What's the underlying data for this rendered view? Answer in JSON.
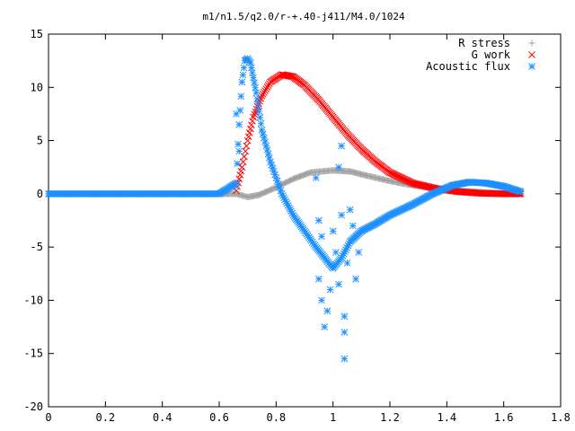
{
  "chart_data": {
    "type": "scatter",
    "title": "m1/n1.5/q2.0/r-+.40-j411/M4.0/1024",
    "xlabel": "",
    "ylabel": "",
    "xlim": [
      0,
      1.8
    ],
    "ylim": [
      -20,
      15
    ],
    "xticks": [
      "0",
      "0.2",
      "0.4",
      "0.6",
      "0.8",
      "1",
      "1.2",
      "1.4",
      "1.6",
      "1.8"
    ],
    "yticks": [
      "15",
      "10",
      "5",
      "0",
      "-5",
      "-10",
      "-15",
      "-20"
    ],
    "legend_position": "top-right",
    "grid": false,
    "series": [
      {
        "name": "R stress",
        "marker": "plus",
        "color": "#a0a0a0",
        "points": [
          [
            0.0,
            0.0
          ],
          [
            0.2,
            0.0
          ],
          [
            0.4,
            0.0
          ],
          [
            0.6,
            0.0
          ],
          [
            0.66,
            0.0
          ],
          [
            0.7,
            -0.3
          ],
          [
            0.74,
            -0.1
          ],
          [
            0.8,
            0.6
          ],
          [
            0.86,
            1.4
          ],
          [
            0.92,
            2.0
          ],
          [
            1.0,
            2.2
          ],
          [
            1.06,
            2.1
          ],
          [
            1.12,
            1.7
          ],
          [
            1.2,
            1.2
          ],
          [
            1.28,
            0.8
          ],
          [
            1.36,
            0.5
          ],
          [
            1.44,
            0.3
          ],
          [
            1.52,
            0.15
          ],
          [
            1.6,
            0.05
          ],
          [
            1.66,
            0.0
          ]
        ]
      },
      {
        "name": "G work",
        "marker": "cross",
        "color": "#ff0000",
        "points": [
          [
            0.66,
            0.3
          ],
          [
            0.68,
            2.5
          ],
          [
            0.7,
            5.0
          ],
          [
            0.72,
            7.2
          ],
          [
            0.75,
            9.2
          ],
          [
            0.78,
            10.5
          ],
          [
            0.82,
            11.2
          ],
          [
            0.86,
            11.0
          ],
          [
            0.9,
            10.2
          ],
          [
            0.95,
            8.8
          ],
          [
            1.0,
            7.2
          ],
          [
            1.05,
            5.6
          ],
          [
            1.1,
            4.2
          ],
          [
            1.15,
            3.0
          ],
          [
            1.2,
            2.0
          ],
          [
            1.28,
            1.0
          ],
          [
            1.36,
            0.5
          ],
          [
            1.44,
            0.2
          ],
          [
            1.52,
            0.05
          ],
          [
            1.6,
            0.0
          ],
          [
            1.66,
            0.0
          ]
        ]
      },
      {
        "name": "Acoustic flux",
        "marker": "star",
        "color": "#1e90ff",
        "points": [
          [
            0.0,
            0.0
          ],
          [
            0.2,
            0.0
          ],
          [
            0.4,
            0.0
          ],
          [
            0.6,
            0.0
          ],
          [
            0.66,
            1.0
          ],
          [
            0.67,
            6.5
          ],
          [
            0.68,
            10.5
          ],
          [
            0.69,
            12.5
          ],
          [
            0.7,
            12.7
          ],
          [
            0.71,
            12.3
          ],
          [
            0.73,
            9.5
          ],
          [
            0.75,
            6.0
          ],
          [
            0.78,
            3.0
          ],
          [
            0.82,
            0.0
          ],
          [
            0.86,
            -2.0
          ],
          [
            0.9,
            -3.5
          ],
          [
            0.94,
            -5.0
          ],
          [
            0.97,
            -6.0
          ],
          [
            1.0,
            -7.0
          ],
          [
            1.03,
            -6.0
          ],
          [
            1.06,
            -4.5
          ],
          [
            1.1,
            -3.5
          ],
          [
            1.15,
            -2.8
          ],
          [
            1.2,
            -2.0
          ],
          [
            1.28,
            -1.0
          ],
          [
            1.35,
            0.0
          ],
          [
            1.42,
            0.8
          ],
          [
            1.48,
            1.1
          ],
          [
            1.54,
            1.0
          ],
          [
            1.6,
            0.7
          ],
          [
            1.66,
            0.2
          ],
          [
            0.66,
            7.5
          ],
          [
            0.67,
            4.0
          ],
          [
            0.94,
            1.5
          ],
          [
            0.95,
            -2.5
          ],
          [
            0.96,
            -4.0
          ],
          [
            0.95,
            -8.0
          ],
          [
            0.96,
            -10.0
          ],
          [
            0.97,
            -12.5
          ],
          [
            0.98,
            -11.0
          ],
          [
            0.99,
            -9.0
          ],
          [
            1.0,
            -3.5
          ],
          [
            1.01,
            -5.5
          ],
          [
            1.02,
            -8.5
          ],
          [
            1.03,
            -2.0
          ],
          [
            1.02,
            2.5
          ],
          [
            1.03,
            4.5
          ],
          [
            1.04,
            -11.5
          ],
          [
            1.04,
            -13.0
          ],
          [
            1.04,
            -15.5
          ],
          [
            1.05,
            -6.5
          ],
          [
            1.06,
            -1.5
          ],
          [
            1.07,
            -3.0
          ],
          [
            1.08,
            -8.0
          ],
          [
            1.09,
            -5.5
          ]
        ]
      }
    ]
  }
}
